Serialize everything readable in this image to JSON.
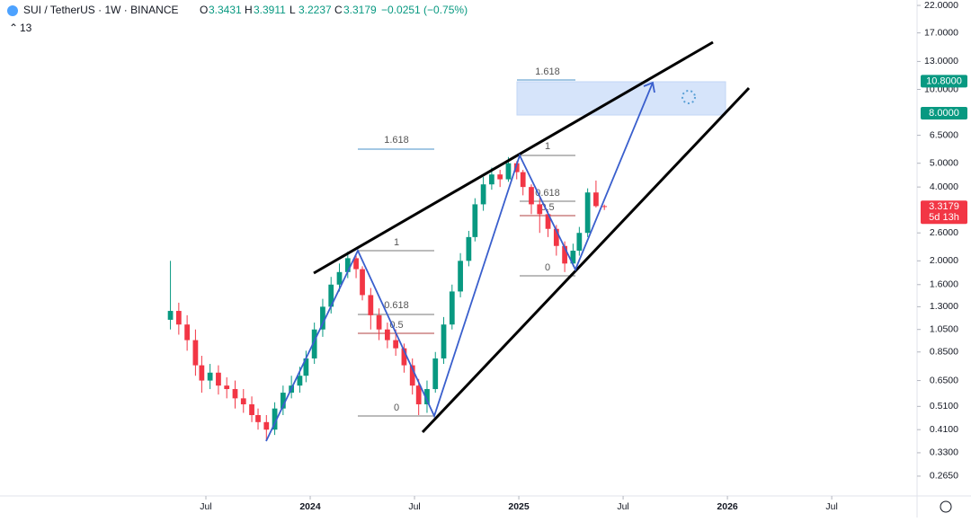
{
  "header": {
    "symbol": "SUI / TetherUS · 1W · BINANCE",
    "ohlc_labels": [
      "O",
      "H",
      "L",
      "C"
    ],
    "change": "−0.0251 (−0.75%)",
    "indicator": "13"
  },
  "chart_data": {
    "type": "candlestick",
    "title": "SUI / TetherUS · 1W · BINANCE",
    "log_scale": true,
    "up_color": "#089981",
    "down_color": "#f23645",
    "x": [
      2023.33,
      2023.37,
      2023.41,
      2023.45,
      2023.48,
      2023.52,
      2023.56,
      2023.6,
      2023.64,
      2023.68,
      2023.72,
      2023.75,
      2023.79,
      2023.83,
      2023.87,
      2023.91,
      2023.95,
      2023.98,
      2024.02,
      2024.06,
      2024.1,
      2024.14,
      2024.18,
      2024.22,
      2024.25,
      2024.29,
      2024.33,
      2024.37,
      2024.41,
      2024.45,
      2024.49,
      2024.52,
      2024.56,
      2024.6,
      2024.64,
      2024.68,
      2024.72,
      2024.76,
      2024.79,
      2024.83,
      2024.87,
      2024.91,
      2024.95,
      2024.99,
      2025.02,
      2025.06,
      2025.1,
      2025.14,
      2025.18,
      2025.22,
      2025.26,
      2025.29,
      2025.33,
      2025.37,
      2025.41
    ],
    "open": [
      1.15,
      1.25,
      1.1,
      0.95,
      0.75,
      0.65,
      0.7,
      0.62,
      0.6,
      0.55,
      0.52,
      0.47,
      0.44,
      0.41,
      0.5,
      0.58,
      0.62,
      0.68,
      0.8,
      1.05,
      1.3,
      1.6,
      1.8,
      2.05,
      1.85,
      1.45,
      1.2,
      1.05,
      0.95,
      0.88,
      0.75,
      0.62,
      0.52,
      0.6,
      0.8,
      1.1,
      1.5,
      2.0,
      2.5,
      3.4,
      4.1,
      4.5,
      4.3,
      5.0,
      4.6,
      4.0,
      3.4,
      3.1,
      2.7,
      2.3,
      1.95,
      2.2,
      2.6,
      3.8,
      3.3431
    ],
    "high": [
      2.0,
      1.35,
      1.2,
      1.05,
      0.82,
      0.76,
      0.75,
      0.67,
      0.65,
      0.6,
      0.56,
      0.5,
      0.47,
      0.53,
      0.62,
      0.68,
      0.74,
      0.86,
      1.12,
      1.4,
      1.72,
      1.95,
      2.18,
      2.1,
      1.9,
      1.55,
      1.28,
      1.12,
      1.05,
      0.92,
      0.8,
      0.66,
      0.65,
      0.85,
      1.18,
      1.6,
      2.15,
      2.65,
      3.6,
      4.4,
      4.8,
      4.7,
      5.3,
      5.1,
      4.7,
      4.1,
      3.6,
      3.2,
      2.8,
      2.4,
      2.35,
      2.75,
      3.95,
      4.25,
      3.3911
    ],
    "low": [
      1.05,
      1.0,
      0.86,
      0.68,
      0.58,
      0.6,
      0.57,
      0.55,
      0.5,
      0.48,
      0.44,
      0.41,
      0.37,
      0.39,
      0.47,
      0.55,
      0.58,
      0.64,
      0.76,
      0.98,
      1.22,
      1.5,
      1.7,
      1.7,
      1.38,
      1.05,
      0.95,
      0.88,
      0.82,
      0.7,
      0.57,
      0.47,
      0.48,
      0.58,
      0.76,
      1.05,
      1.42,
      1.9,
      2.4,
      3.2,
      3.9,
      4.0,
      4.2,
      4.3,
      3.7,
      3.1,
      2.6,
      2.5,
      2.1,
      1.8,
      1.9,
      2.1,
      2.5,
      3.3,
      3.2237
    ],
    "close": [
      1.25,
      1.1,
      0.95,
      0.75,
      0.65,
      0.7,
      0.62,
      0.6,
      0.55,
      0.52,
      0.47,
      0.44,
      0.41,
      0.5,
      0.58,
      0.62,
      0.68,
      0.8,
      1.05,
      1.3,
      1.6,
      1.8,
      2.05,
      1.85,
      1.45,
      1.2,
      1.05,
      0.95,
      0.88,
      0.75,
      0.62,
      0.52,
      0.6,
      0.8,
      1.1,
      1.5,
      2.0,
      2.5,
      3.4,
      4.1,
      4.5,
      4.3,
      5.0,
      4.6,
      4.0,
      3.4,
      3.1,
      2.7,
      2.3,
      1.95,
      2.2,
      2.6,
      3.8,
      3.3431,
      3.3179
    ],
    "xlim": [
      2022.513,
      2026.909
    ],
    "ylim": [
      0.22,
      23.15
    ],
    "xticks": [
      {
        "value": 2023.5,
        "label": "Jul"
      },
      2024,
      {
        "value": 2024.5,
        "label": "Jul"
      },
      2025,
      {
        "value": 2025.5,
        "label": "Jul"
      },
      2026,
      {
        "value": 2026.5,
        "label": "Jul"
      }
    ],
    "yticks": [
      {
        "value": 22,
        "label": "22.0000"
      },
      {
        "value": 17,
        "label": "17.0000"
      },
      {
        "value": 13,
        "label": "13.0000"
      },
      {
        "value": 10,
        "label": "10.0000"
      },
      {
        "value": 6.5,
        "label": "6.5000"
      },
      {
        "value": 5,
        "label": "5.0000"
      },
      {
        "value": 4,
        "label": "4.0000"
      },
      {
        "value": 2.6,
        "label": "2.6000"
      },
      {
        "value": 2,
        "label": "2.0000"
      },
      {
        "value": 1.6,
        "label": "1.6000"
      },
      {
        "value": 1.3,
        "label": "1.3000"
      },
      {
        "value": 1.05,
        "label": "1.0500"
      },
      {
        "value": 0.85,
        "label": "0.8500"
      },
      {
        "value": 0.65,
        "label": "0.6500"
      },
      {
        "value": 0.51,
        "label": "0.5100"
      },
      {
        "value": 0.41,
        "label": "0.4100"
      },
      {
        "value": 0.33,
        "label": "0.3300"
      },
      {
        "value": 0.265,
        "label": "0.2650"
      }
    ],
    "price_tags": [
      {
        "value": 10.8,
        "label": "10.8000"
      },
      {
        "value": 8,
        "label": "8.0000"
      }
    ],
    "countdown": "5d 13h",
    "fib_labels": [
      "1.618",
      "1",
      "0.618",
      "0.5",
      "0",
      "1.618",
      "1",
      "0.618",
      "0.5",
      "0"
    ]
  }
}
